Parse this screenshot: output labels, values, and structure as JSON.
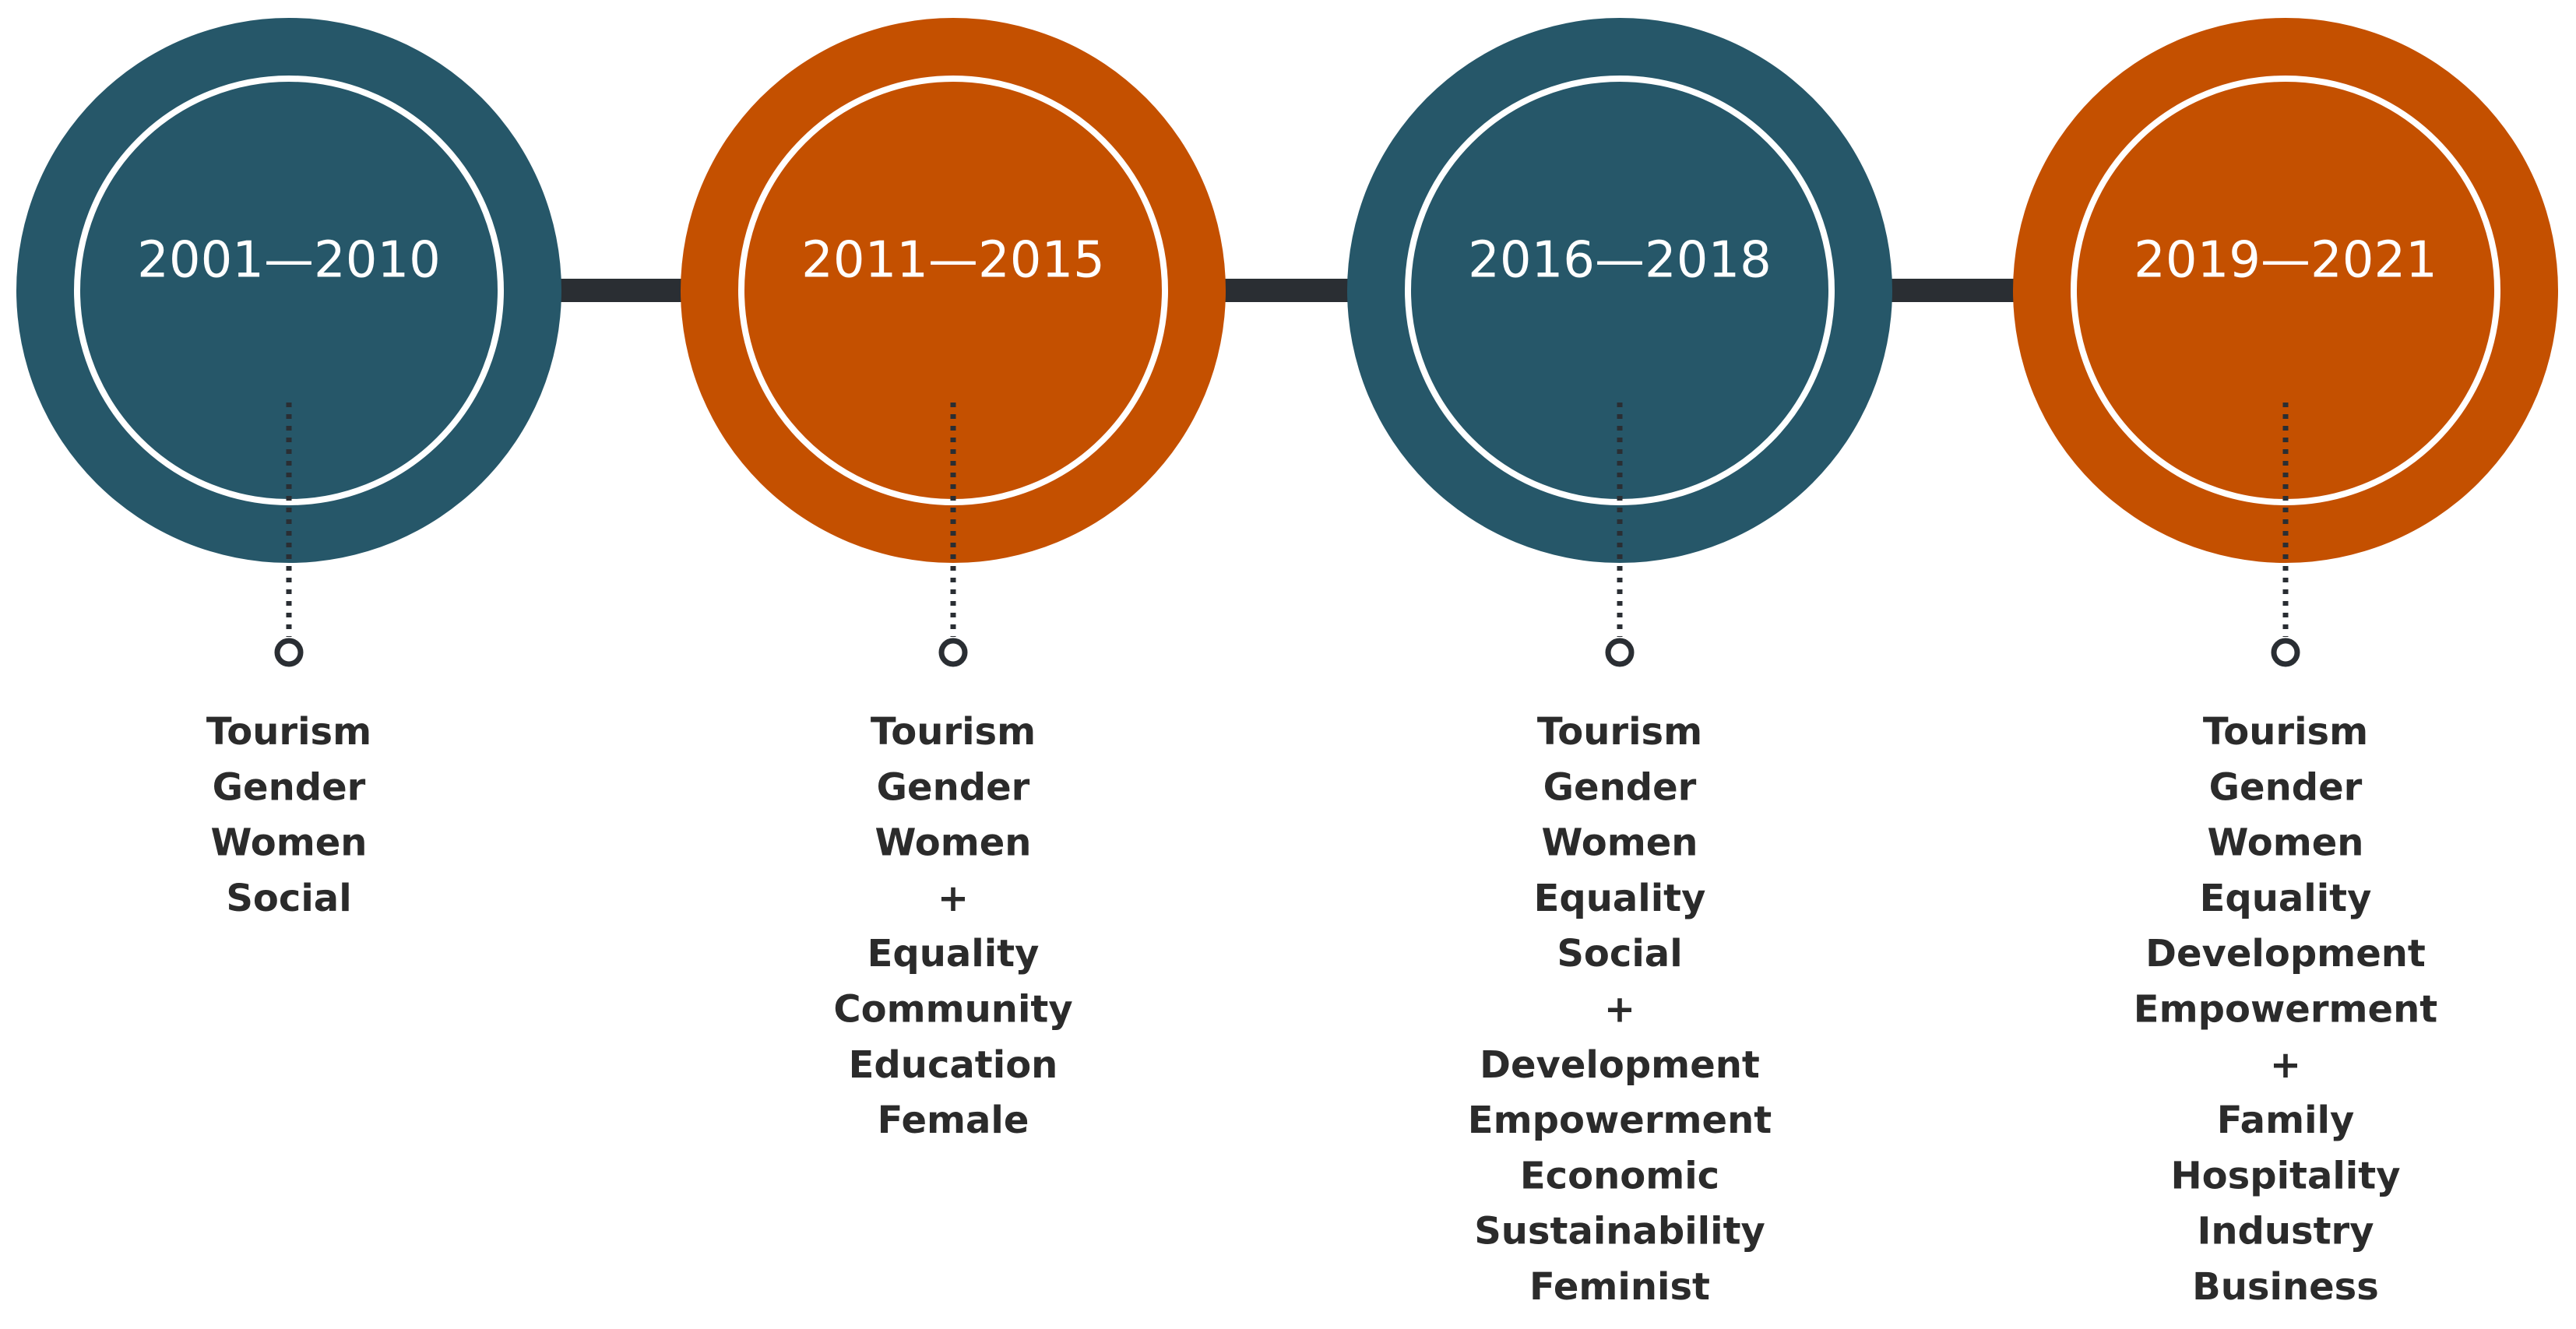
{
  "periods": [
    {
      "label": "2001—2010",
      "terms": [
        "Tourism",
        "Gender",
        "Women",
        "Social"
      ]
    },
    {
      "label": "2011—2015",
      "terms": [
        "Tourism",
        "Gender",
        "Women",
        "+",
        "Equality",
        "Community",
        "Education",
        "Female"
      ]
    },
    {
      "label": "2016—2018",
      "terms": [
        "Tourism",
        "Gender",
        "Women",
        "Equality",
        "Social",
        "+",
        "Development",
        "Empowerment",
        "Economic",
        "Sustainability",
        "Feminist"
      ]
    },
    {
      "label": "2019—2021",
      "terms": [
        "Tourism",
        "Gender",
        "Women",
        "Equality",
        "Development",
        "Empowerment",
        "+",
        "Family",
        "Hospitality",
        "Industry",
        "Business"
      ]
    }
  ]
}
